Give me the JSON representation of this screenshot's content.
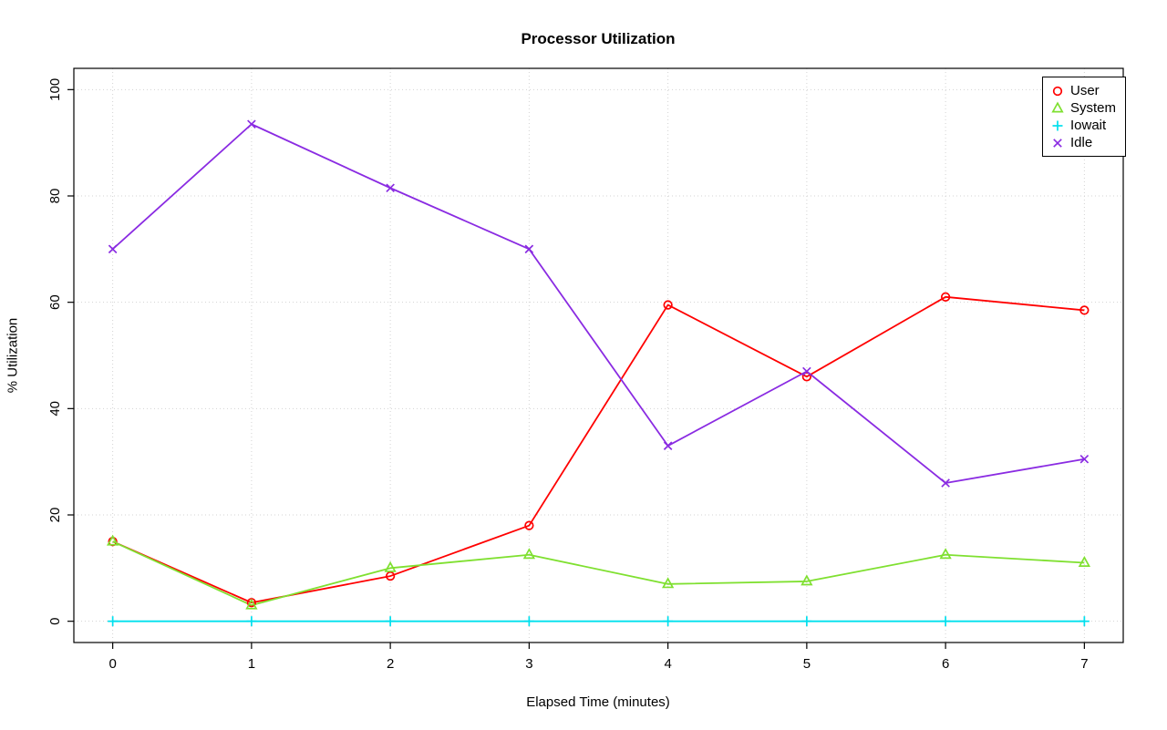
{
  "chart_data": {
    "type": "line",
    "title": "Processor Utilization",
    "xlabel": "Elapsed Time (minutes)",
    "ylabel": "% Utilization",
    "x": [
      0,
      1,
      2,
      3,
      4,
      5,
      6,
      7
    ],
    "xlim": [
      0,
      7
    ],
    "ylim": [
      0,
      100
    ],
    "xticks": [
      0,
      1,
      2,
      3,
      4,
      5,
      6,
      7
    ],
    "yticks": [
      0,
      20,
      40,
      60,
      80,
      100
    ],
    "grid": true,
    "legend_position": "top-right",
    "series": [
      {
        "name": "User",
        "color": "#ff0000",
        "marker": "circle",
        "values": [
          15,
          3.5,
          8.5,
          18,
          59.5,
          46,
          61,
          58.5
        ]
      },
      {
        "name": "System",
        "color": "#7fe030",
        "marker": "triangle",
        "values": [
          15,
          3,
          10,
          12.5,
          7,
          7.5,
          12.5,
          11
        ]
      },
      {
        "name": "Iowait",
        "color": "#00e0ee",
        "marker": "plus",
        "values": [
          0,
          0,
          0,
          0,
          0,
          0,
          0,
          0
        ]
      },
      {
        "name": "Idle",
        "color": "#8a2be2",
        "marker": "x",
        "values": [
          70,
          93.5,
          81.5,
          70,
          33,
          47,
          26,
          30.5
        ]
      }
    ],
    "styles": {
      "grid_color": "#d3d3d3",
      "axis_color": "#000000",
      "background": "#ffffff"
    }
  }
}
